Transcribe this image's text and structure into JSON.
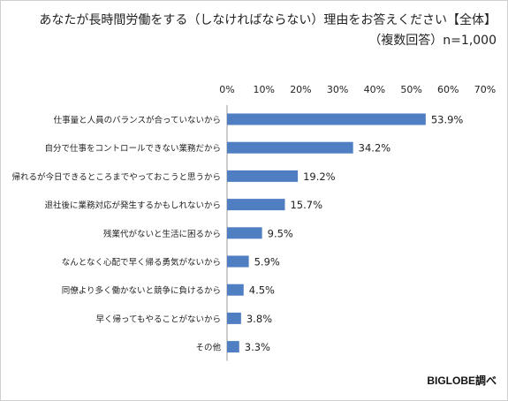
{
  "title": {
    "line1": "あなたが長時間労働をする（しなければならない）理由をお答えください【全体】",
    "line2": "（複数回答）n=1,000"
  },
  "source": "BIGLOBE調べ",
  "colors": {
    "bar": "#4f7ec2",
    "gridline": "#d9d9d9",
    "axis": "#9a9a9a"
  },
  "chart_data": {
    "type": "bar",
    "orientation": "horizontal",
    "categories": [
      "仕事量と人員のバランスが合っていないから",
      "自分で仕事をコントロールできない業務だから",
      "帰れるが今日できるところまでやっておこうと思うから",
      "退社後に業務対応が発生するかもしれないから",
      "残業代がないと生活に困るから",
      "なんとなく心配で早く帰る勇気がないから",
      "同僚より多く働かないと競争に負けるから",
      "早く帰ってもやることがないから",
      "その他"
    ],
    "values": [
      53.9,
      34.2,
      19.2,
      15.7,
      9.5,
      5.9,
      4.5,
      3.8,
      3.3
    ],
    "value_labels": [
      "53.9%",
      "34.2%",
      "19.2%",
      "15.7%",
      "9.5%",
      "5.9%",
      "4.5%",
      "3.8%",
      "3.3%"
    ],
    "xticks": [
      0,
      10,
      20,
      30,
      40,
      50,
      60,
      70
    ],
    "xtick_labels": [
      "0%",
      "10%",
      "20%",
      "30%",
      "40%",
      "50%",
      "60%",
      "70%"
    ],
    "xlim": [
      0,
      70
    ],
    "axis_position": "top",
    "grid": false,
    "legend": "none"
  }
}
